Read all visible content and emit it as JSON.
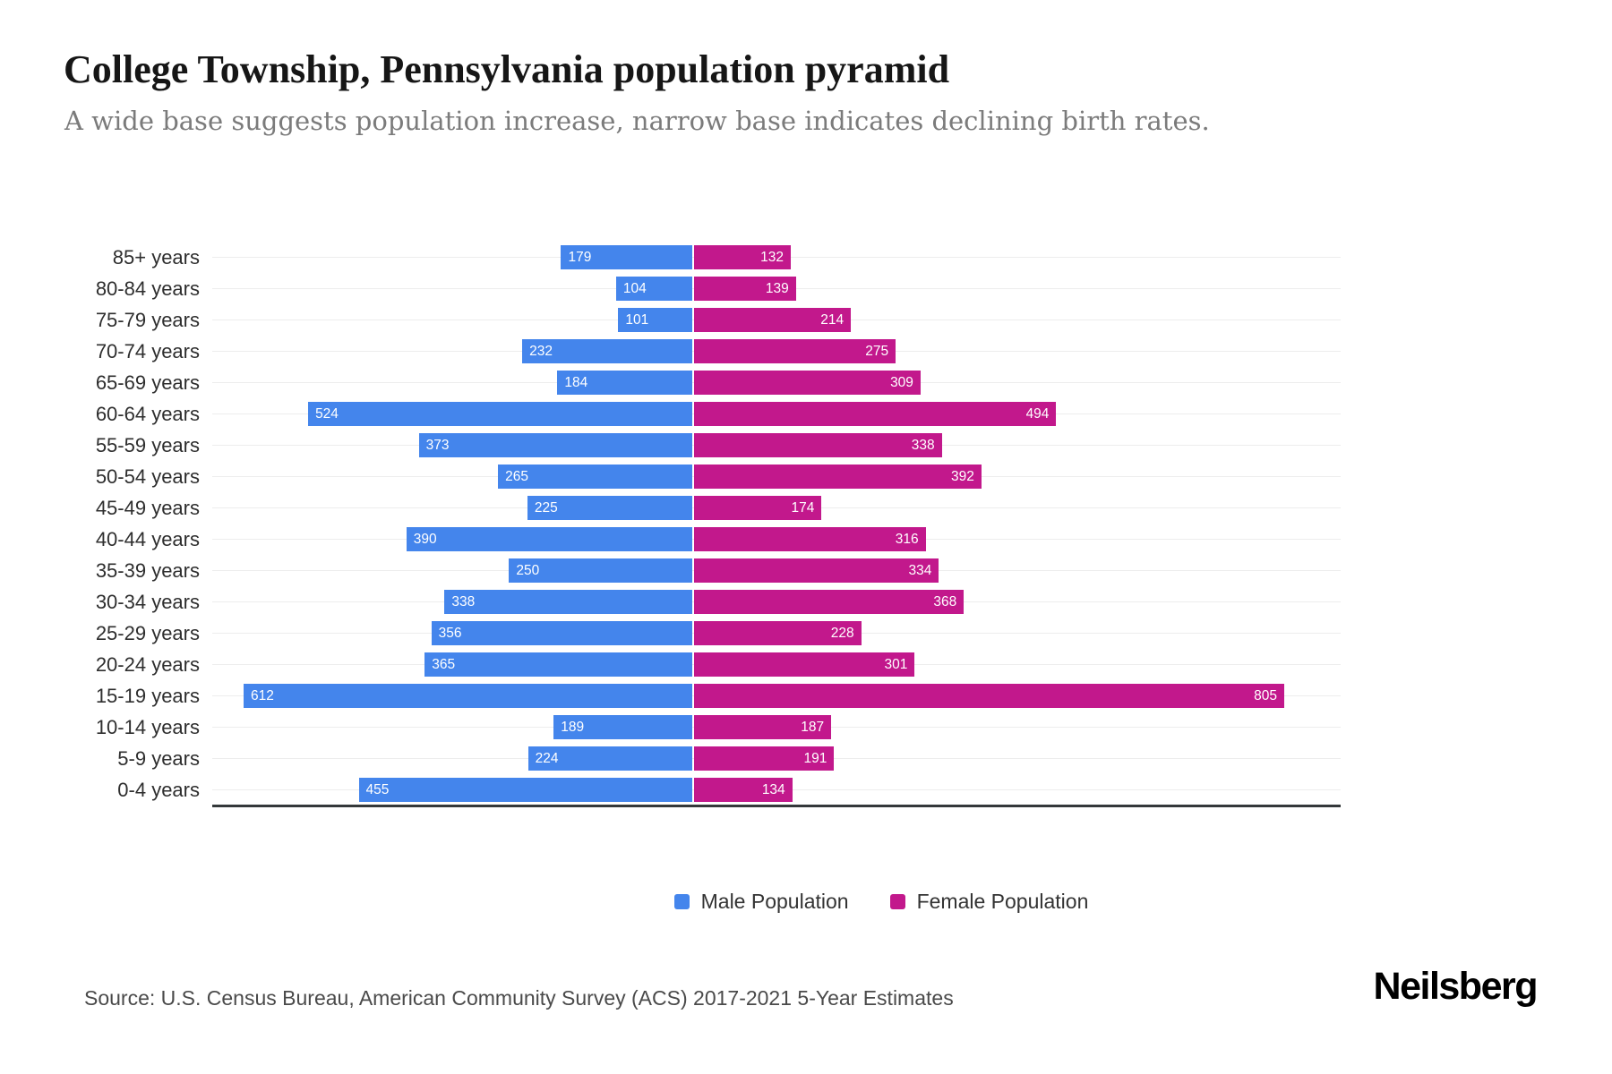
{
  "header": {
    "title": "College Township, Pennsylvania population pyramid",
    "subtitle": "A wide base suggests population increase, narrow base indicates declining birth rates."
  },
  "chart_data": {
    "type": "bar",
    "variant": "population-pyramid",
    "title": "College Township, Pennsylvania population pyramid",
    "categories": [
      "85+ years",
      "80-84 years",
      "75-79 years",
      "70-74 years",
      "65-69 years",
      "60-64 years",
      "55-59 years",
      "50-54 years",
      "45-49 years",
      "40-44 years",
      "35-39 years",
      "30-34 years",
      "25-29 years",
      "20-24 years",
      "15-19 years",
      "10-14 years",
      "5-9 years",
      "0-4 years"
    ],
    "series": [
      {
        "name": "Male Population",
        "side": "left",
        "color": "#4485EC",
        "values": [
          179,
          104,
          101,
          232,
          184,
          524,
          373,
          265,
          225,
          390,
          250,
          338,
          356,
          365,
          612,
          189,
          224,
          455
        ]
      },
      {
        "name": "Female Population",
        "side": "right",
        "color": "#C2188C",
        "values": [
          132,
          139,
          214,
          275,
          309,
          494,
          338,
          392,
          174,
          316,
          334,
          368,
          228,
          301,
          805,
          187,
          191,
          134
        ]
      }
    ],
    "value_labels": "inside-bar-ends",
    "legend_position": "bottom",
    "grid": true,
    "gridline_color": "#ededed",
    "axis_line_color": "#34383a"
  },
  "legend": {
    "male_label": "Male Population",
    "female_label": "Female Population"
  },
  "footer": {
    "source": "Source: U.S. Census Bureau, American Community Survey (ACS) 2017-2021 5-Year Estimates",
    "brand": "Neilsberg"
  },
  "colors": {
    "male": "#4485EC",
    "female": "#C2188C"
  }
}
